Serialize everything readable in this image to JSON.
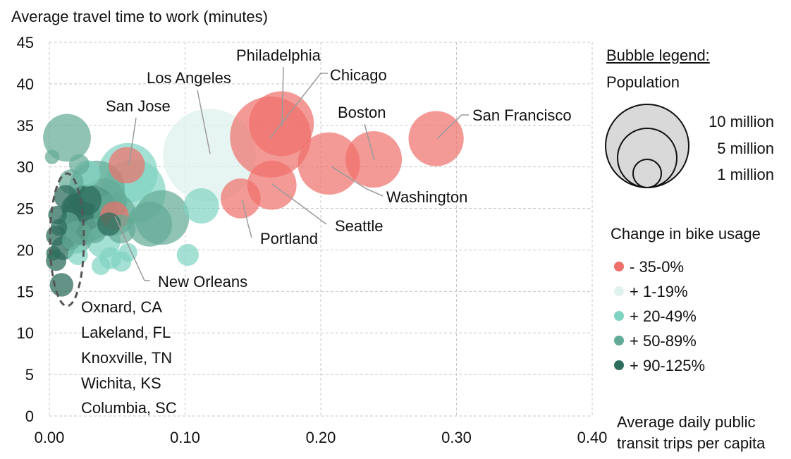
{
  "chart_data": {
    "type": "scatter",
    "title": "",
    "ylabel": "Average travel time to work (minutes)",
    "xlabel": "Average daily public transit trips per capita",
    "xlim": [
      0,
      0.4
    ],
    "ylim": [
      0,
      45
    ],
    "x_ticks": [
      "0.00",
      "0.10",
      "0.20",
      "0.30",
      "0.40"
    ],
    "y_ticks": [
      "0",
      "5",
      "10",
      "15",
      "20",
      "25",
      "30",
      "35",
      "40",
      "45"
    ],
    "grid": "dashed",
    "bubble_legend": {
      "title": "Bubble legend:",
      "subtitle": "Population",
      "sizes": [
        {
          "label": "10 million",
          "population_millions": 10
        },
        {
          "label": "5 million",
          "population_millions": 5
        },
        {
          "label": "1 million",
          "population_millions": 1
        }
      ]
    },
    "color_legend": {
      "title": "Change in bike usage",
      "items": [
        {
          "label": "- 35-0%",
          "color": "#ef6f6a"
        },
        {
          "label": "+ 1-19%",
          "color": "#dff2ee"
        },
        {
          "label": "+ 20-49%",
          "color": "#7fd3c2"
        },
        {
          "label": "+ 50-89%",
          "color": "#62a996"
        },
        {
          "label": "+ 90-125%",
          "color": "#2f6e5e"
        }
      ]
    },
    "annotations": {
      "small_cities_labels": [
        "Oxnard, CA",
        "Lakeland, FL",
        "Knoxville, TN",
        "Wichita, KS",
        "Columbia, SC"
      ]
    },
    "points": [
      {
        "label": "Los Angeles",
        "x": 0.118,
        "y": 31.4,
        "pop": 12.5,
        "group": 1
      },
      {
        "label": "Philadelphia",
        "x": 0.171,
        "y": 35.2,
        "pop": 6.1,
        "group": 0
      },
      {
        "label": "Chicago",
        "x": 0.163,
        "y": 33.6,
        "pop": 9.5,
        "group": 0
      },
      {
        "label": "Boston",
        "x": 0.239,
        "y": 30.9,
        "pop": 4.6,
        "group": 0
      },
      {
        "label": "San Francisco",
        "x": 0.285,
        "y": 33.4,
        "pop": 4.4,
        "group": 0
      },
      {
        "label": "Washington",
        "x": 0.206,
        "y": 30.4,
        "pop": 5.6,
        "group": 0
      },
      {
        "label": "Seattle",
        "x": 0.164,
        "y": 27.8,
        "pop": 3.5,
        "group": 0
      },
      {
        "label": "Portland",
        "x": 0.141,
        "y": 26.2,
        "pop": 2.3,
        "group": 0
      },
      {
        "label": "San Jose",
        "x": 0.057,
        "y": 30.2,
        "pop": 1.9,
        "group": 0
      },
      {
        "label": "New Orleans",
        "x": 0.048,
        "y": 24.1,
        "pop": 1.2,
        "group": 0
      },
      {
        "label": "Oxnard, CA",
        "x": 0.012,
        "y": 26.4,
        "pop": 0.8,
        "group": 4
      },
      {
        "label": "Lakeland, FL",
        "x": 0.005,
        "y": 21.7,
        "pop": 0.6,
        "group": 4
      },
      {
        "label": "Knoxville, TN",
        "x": 0.01,
        "y": 20.2,
        "pop": 0.8,
        "group": 4
      },
      {
        "label": "Wichita, KS",
        "x": 0.005,
        "y": 18.7,
        "pop": 0.6,
        "group": 4
      },
      {
        "label": "Columbia, SC",
        "x": 0.009,
        "y": 15.8,
        "pop": 0.8,
        "group": 4
      },
      {
        "label": "",
        "x": 0.013,
        "y": 33.5,
        "pop": 3.3,
        "group": 3
      },
      {
        "label": "",
        "x": 0.058,
        "y": 29.3,
        "pop": 5.1,
        "group": 2
      },
      {
        "label": "",
        "x": 0.083,
        "y": 23.9,
        "pop": 4.3,
        "group": 3
      },
      {
        "label": "",
        "x": 0.074,
        "y": 23.1,
        "pop": 2.9,
        "group": 3
      },
      {
        "label": "",
        "x": 0.062,
        "y": 27.0,
        "pop": 6.0,
        "group": 2
      },
      {
        "label": "",
        "x": 0.035,
        "y": 27.4,
        "pop": 4.5,
        "group": 3
      },
      {
        "label": "",
        "x": 0.03,
        "y": 24.5,
        "pop": 4.4,
        "group": 4
      },
      {
        "label": "",
        "x": 0.04,
        "y": 25.8,
        "pop": 3.1,
        "group": 3
      },
      {
        "label": "",
        "x": 0.024,
        "y": 23.2,
        "pop": 2.7,
        "group": 4
      },
      {
        "label": "",
        "x": 0.048,
        "y": 24.3,
        "pop": 2.6,
        "group": 3
      },
      {
        "label": "",
        "x": 0.112,
        "y": 25.3,
        "pop": 1.8,
        "group": 2
      },
      {
        "label": "",
        "x": 0.102,
        "y": 19.4,
        "pop": 0.7,
        "group": 2
      },
      {
        "label": "",
        "x": 0.04,
        "y": 21.0,
        "pop": 1.6,
        "group": 2
      },
      {
        "label": "",
        "x": 0.053,
        "y": 22.5,
        "pop": 1.2,
        "group": 3
      },
      {
        "label": "",
        "x": 0.02,
        "y": 21.5,
        "pop": 1.5,
        "group": 3
      },
      {
        "label": "",
        "x": 0.045,
        "y": 19.0,
        "pop": 0.7,
        "group": 2
      },
      {
        "label": "",
        "x": 0.038,
        "y": 18.1,
        "pop": 0.5,
        "group": 2
      },
      {
        "label": "",
        "x": 0.053,
        "y": 18.6,
        "pop": 0.6,
        "group": 2
      },
      {
        "label": "",
        "x": 0.058,
        "y": 19.7,
        "pop": 0.5,
        "group": 2
      },
      {
        "label": "",
        "x": 0.021,
        "y": 19.4,
        "pop": 0.6,
        "group": 2
      },
      {
        "label": "",
        "x": 0.002,
        "y": 31.2,
        "pop": 0.3,
        "group": 3
      },
      {
        "label": "",
        "x": 0.022,
        "y": 30.3,
        "pop": 0.6,
        "group": 3
      },
      {
        "label": "",
        "x": 0.016,
        "y": 28.2,
        "pop": 0.9,
        "group": 3
      },
      {
        "label": "",
        "x": 0.028,
        "y": 29.2,
        "pop": 1.0,
        "group": 2
      },
      {
        "label": "",
        "x": 0.006,
        "y": 24.2,
        "pop": 0.5,
        "group": 4
      },
      {
        "label": "",
        "x": 0.014,
        "y": 23.2,
        "pop": 0.7,
        "group": 3
      },
      {
        "label": "",
        "x": 0.007,
        "y": 22.7,
        "pop": 0.4,
        "group": 4
      },
      {
        "label": "",
        "x": 0.016,
        "y": 21.1,
        "pop": 0.5,
        "group": 3
      },
      {
        "label": "",
        "x": 0.003,
        "y": 19.6,
        "pop": 0.3,
        "group": 4
      },
      {
        "label": "",
        "x": 0.027,
        "y": 26.0,
        "pop": 1.4,
        "group": 4
      },
      {
        "label": "",
        "x": 0.033,
        "y": 22.3,
        "pop": 0.9,
        "group": 3
      },
      {
        "label": "",
        "x": 0.044,
        "y": 23.1,
        "pop": 0.8,
        "group": 4
      },
      {
        "label": "",
        "x": 0.018,
        "y": 25.1,
        "pop": 0.9,
        "group": 4
      }
    ]
  }
}
